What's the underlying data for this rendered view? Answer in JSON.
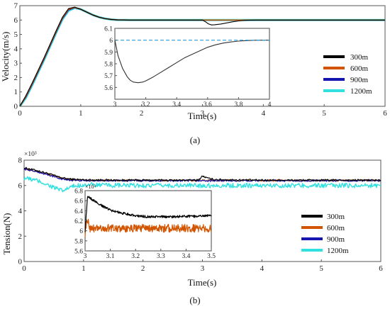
{
  "chart_data": [
    {
      "type": "line",
      "caption": "(a)",
      "xlabel": "Time(s)",
      "ylabel": "Velocity(m/s)",
      "xlim": [
        0,
        6
      ],
      "ylim": [
        0,
        7
      ],
      "xticks": [
        "0",
        "1",
        "2",
        "3",
        "4",
        "5",
        "6"
      ],
      "yticks": [
        "0",
        "1",
        "2",
        "3",
        "4",
        "5",
        "6",
        "7"
      ],
      "legend_position": "right",
      "series": [
        {
          "name": "300m",
          "color": "#000000",
          "x": [
            0,
            0.1,
            0.2,
            0.3,
            0.4,
            0.5,
            0.6,
            0.7,
            0.8,
            0.9,
            1.0,
            1.1,
            1.2,
            1.3,
            1.4,
            1.5,
            1.6,
            1.8,
            2.0,
            2.5,
            2.95,
            3.0,
            3.05,
            3.1,
            3.15,
            3.2,
            3.3,
            3.4,
            3.5,
            3.6,
            3.7,
            3.8,
            3.9,
            4.0,
            5.0,
            6.0
          ],
          "y": [
            0,
            0.75,
            1.6,
            2.5,
            3.4,
            4.35,
            5.3,
            6.2,
            6.8,
            6.9,
            6.75,
            6.55,
            6.35,
            6.2,
            6.1,
            6.04,
            6.01,
            6.0,
            6.0,
            6.0,
            6.0,
            6.0,
            5.88,
            5.73,
            5.66,
            5.67,
            5.72,
            5.8,
            5.88,
            5.94,
            5.98,
            5.995,
            6.0,
            6.0,
            6.0,
            6.0
          ]
        },
        {
          "name": "600m",
          "color": "#d35400",
          "x": [
            0,
            0.1,
            0.2,
            0.3,
            0.4,
            0.5,
            0.6,
            0.7,
            0.8,
            0.9,
            1.0,
            1.1,
            1.2,
            1.3,
            1.4,
            1.5,
            1.6,
            1.8,
            2.0,
            3.0,
            4.0,
            5.0,
            6.0
          ],
          "y": [
            0,
            0.7,
            1.55,
            2.45,
            3.35,
            4.3,
            5.25,
            6.15,
            6.75,
            6.88,
            6.75,
            6.55,
            6.35,
            6.2,
            6.1,
            6.04,
            6.01,
            6.0,
            6.0,
            6.0,
            6.0,
            6.0,
            6.0
          ]
        },
        {
          "name": "900m",
          "color": "#1515b0",
          "x": [
            0,
            0.1,
            0.2,
            0.3,
            0.4,
            0.5,
            0.6,
            0.7,
            0.8,
            0.9,
            1.0,
            1.1,
            1.2,
            1.3,
            1.4,
            1.5,
            1.6,
            1.8,
            2.0,
            3.0,
            4.0,
            5.0,
            6.0
          ],
          "y": [
            0,
            0.65,
            1.5,
            2.4,
            3.3,
            4.25,
            5.2,
            6.1,
            6.7,
            6.86,
            6.75,
            6.55,
            6.35,
            6.2,
            6.1,
            6.04,
            6.01,
            6.0,
            6.0,
            6.0,
            6.0,
            6.0,
            6.0
          ]
        },
        {
          "name": "1200m",
          "color": "#33e0e0",
          "x": [
            0,
            0.1,
            0.2,
            0.3,
            0.4,
            0.5,
            0.6,
            0.7,
            0.8,
            0.9,
            1.0,
            1.1,
            1.2,
            1.3,
            1.4,
            1.5,
            1.6,
            1.8,
            2.0,
            3.0,
            4.0,
            5.0,
            6.0
          ],
          "y": [
            0,
            0.6,
            1.45,
            2.35,
            3.25,
            4.2,
            5.15,
            6.05,
            6.65,
            6.84,
            6.75,
            6.55,
            6.35,
            6.2,
            6.1,
            6.04,
            6.01,
            6.0,
            6.0,
            6.0,
            6.0,
            6.0,
            6.0
          ]
        }
      ],
      "inset": {
        "xlim": [
          3,
          4
        ],
        "ylim": [
          5.5,
          6.1
        ],
        "xticks": [
          "3",
          "3.2",
          "3.4",
          "3.6",
          "3.8",
          "4"
        ],
        "yticks": [
          "5.6",
          "5.7",
          "5.8",
          "5.9",
          "6",
          "6.1"
        ],
        "series": [
          {
            "name": "300m",
            "color": "#333333",
            "x": [
              3.0,
              3.02,
              3.05,
              3.08,
              3.1,
              3.12,
              3.15,
              3.18,
              3.2,
              3.25,
              3.3,
              3.35,
              3.4,
              3.45,
              3.5,
              3.55,
              3.6,
              3.65,
              3.7,
              3.75,
              3.8,
              3.85,
              3.9,
              3.95,
              4.0
            ],
            "y": [
              6.0,
              5.87,
              5.76,
              5.69,
              5.66,
              5.645,
              5.64,
              5.645,
              5.655,
              5.69,
              5.73,
              5.77,
              5.81,
              5.85,
              5.88,
              5.91,
              5.94,
              5.96,
              5.975,
              5.985,
              5.992,
              5.996,
              5.999,
              6.0,
              6.0
            ]
          },
          {
            "name": "1200m",
            "color": "#2a9fd6",
            "dash": true,
            "x": [
              3.0,
              4.0
            ],
            "y": [
              6.0,
              6.0
            ]
          }
        ]
      }
    },
    {
      "type": "line",
      "caption": "(b)",
      "xlabel": "Time(s)",
      "ylabel": "Tension(N)",
      "y_multiplier": "×10³",
      "xlim": [
        0,
        6
      ],
      "ylim": [
        0,
        8
      ],
      "xticks": [
        "0",
        "1",
        "2",
        "3",
        "4",
        "5",
        "6"
      ],
      "yticks": [
        "0",
        "2",
        "4",
        "6",
        "8"
      ],
      "legend_position": "right",
      "series": [
        {
          "name": "300m",
          "color": "#000000",
          "x": [
            0,
            0.2,
            0.4,
            0.6,
            0.7,
            0.8,
            1.0,
            1.5,
            2.0,
            2.9,
            2.95,
            3.0,
            3.1,
            3.2,
            3.5,
            4.0,
            6.0
          ],
          "y": [
            7.4,
            7.2,
            6.95,
            6.65,
            6.55,
            6.5,
            6.45,
            6.42,
            6.42,
            6.42,
            6.5,
            6.75,
            6.55,
            6.48,
            6.44,
            6.42,
            6.42
          ],
          "noise": 0.07
        },
        {
          "name": "600m",
          "color": "#d35400",
          "x": [
            0,
            0.2,
            0.4,
            0.6,
            0.7,
            0.8,
            1.0,
            1.5,
            2.0,
            3.0,
            4.0,
            6.0
          ],
          "y": [
            7.35,
            7.15,
            6.9,
            6.6,
            6.5,
            6.45,
            6.42,
            6.4,
            6.4,
            6.4,
            6.4,
            6.4
          ],
          "noise": 0.07
        },
        {
          "name": "900m",
          "color": "#1515b0",
          "x": [
            0,
            0.2,
            0.4,
            0.6,
            0.7,
            0.8,
            1.0,
            1.5,
            2.0,
            3.0,
            4.0,
            6.0
          ],
          "y": [
            7.3,
            7.1,
            6.85,
            6.55,
            6.45,
            6.42,
            6.4,
            6.38,
            6.38,
            6.38,
            6.38,
            6.38
          ],
          "noise": 0.07
        },
        {
          "name": "1200m",
          "color": "#33e0e0",
          "x": [
            0,
            0.1,
            0.2,
            0.3,
            0.4,
            0.5,
            0.6,
            0.65,
            0.7,
            0.8,
            0.9,
            1.0,
            1.2,
            1.5,
            2.0,
            3.0,
            4.0,
            6.0
          ],
          "y": [
            6.6,
            6.5,
            6.4,
            6.25,
            6.05,
            5.85,
            5.65,
            5.55,
            5.7,
            5.9,
            6.0,
            6.05,
            6.05,
            6.0,
            6.0,
            6.0,
            6.0,
            6.0
          ],
          "noise": 0.18
        }
      ],
      "inset": {
        "xlim": [
          3,
          3.5
        ],
        "ylim": [
          5.6,
          6.8
        ],
        "y_multiplier": "×10³",
        "xticks": [
          "3",
          "3.1",
          "3.2",
          "3.3",
          "3.4",
          "3.5"
        ],
        "yticks": [
          "5.6",
          "5.8",
          "6",
          "6.2",
          "6.4",
          "6.6",
          "6.8"
        ],
        "series": [
          {
            "name": "300m",
            "color": "#000000",
            "x": [
              3.0,
              3.01,
              3.02,
              3.05,
              3.08,
              3.1,
              3.12,
              3.15,
              3.18,
              3.2,
              3.25,
              3.3,
              3.35,
              3.4,
              3.45,
              3.5
            ],
            "y": [
              6.0,
              6.7,
              6.65,
              6.55,
              6.46,
              6.41,
              6.38,
              6.35,
              6.32,
              6.3,
              6.28,
              6.28,
              6.28,
              6.29,
              6.29,
              6.3
            ],
            "noise": 0.025
          },
          {
            "name": "600m",
            "color": "#d35400",
            "x": [
              3.0,
              3.01,
              3.02,
              3.5
            ],
            "y": [
              5.95,
              6.25,
              6.05,
              6.05
            ],
            "noise": 0.08
          }
        ]
      }
    }
  ],
  "legend": [
    "300m",
    "600m",
    "900m",
    "1200m"
  ]
}
